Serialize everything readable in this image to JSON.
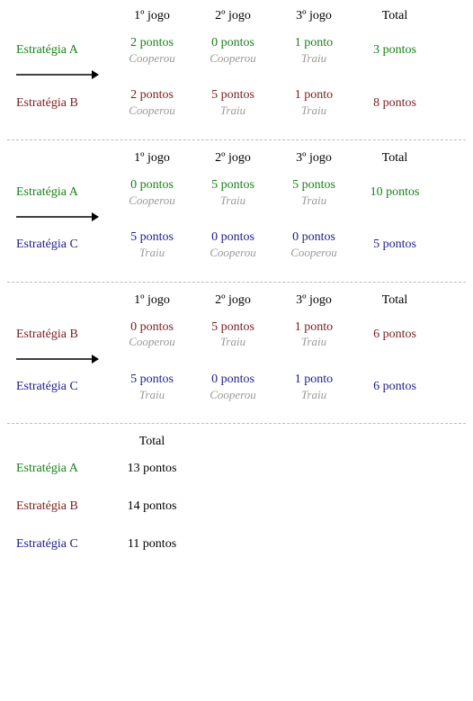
{
  "colors": {
    "A": "#178217",
    "B": "#7a1c1c",
    "C": "#1c1c8a",
    "header": "#000000",
    "action": "#9a9a97",
    "summary_value": "#000000"
  },
  "headers": {
    "g1": "1º jogo",
    "g2": "2º jogo",
    "g3": "3º jogo",
    "total": "Total"
  },
  "panels": [
    {
      "top": {
        "id": "A",
        "label": "Estratégia A",
        "g1": {
          "score": "2 pontos",
          "action": "Cooperou"
        },
        "g2": {
          "score": "0 pontos",
          "action": "Cooperou"
        },
        "g3": {
          "score": "1 ponto",
          "action": "Traiu"
        },
        "total": "3 pontos"
      },
      "bot": {
        "id": "B",
        "label": "Estratégia B",
        "g1": {
          "score": "2 pontos",
          "action": "Cooperou"
        },
        "g2": {
          "score": "5 pontos",
          "action": "Traiu"
        },
        "g3": {
          "score": "1 ponto",
          "action": "Traiu"
        },
        "total": "8 pontos"
      }
    },
    {
      "top": {
        "id": "A",
        "label": "Estratégia A",
        "g1": {
          "score": "0 pontos",
          "action": "Cooperou"
        },
        "g2": {
          "score": "5 pontos",
          "action": "Traiu"
        },
        "g3": {
          "score": "5 pontos",
          "action": "Traiu"
        },
        "total": "10 pontos"
      },
      "bot": {
        "id": "C",
        "label": "Estratégia C",
        "g1": {
          "score": "5 pontos",
          "action": "Traiu"
        },
        "g2": {
          "score": "0 pontos",
          "action": "Cooperou"
        },
        "g3": {
          "score": "0 pontos",
          "action": "Cooperou"
        },
        "total": "5 pontos"
      }
    },
    {
      "top": {
        "id": "B",
        "label": "Estratégia B",
        "g1": {
          "score": "0 pontos",
          "action": "Cooperou"
        },
        "g2": {
          "score": "5 pontos",
          "action": "Traiu"
        },
        "g3": {
          "score": "1 ponto",
          "action": "Traiu"
        },
        "total": "6 pontos"
      },
      "bot": {
        "id": "C",
        "label": "Estratégia C",
        "g1": {
          "score": "5 pontos",
          "action": "Traiu"
        },
        "g2": {
          "score": "0 pontos",
          "action": "Cooperou"
        },
        "g3": {
          "score": "1 ponto",
          "action": "Traiu"
        },
        "total": "6 pontos"
      }
    }
  ],
  "summary": {
    "header": "Total",
    "rows": [
      {
        "id": "A",
        "label": "Estratégia A",
        "total": "13 pontos"
      },
      {
        "id": "B",
        "label": "Estratégia B",
        "total": "14 pontos"
      },
      {
        "id": "C",
        "label": "Estratégia C",
        "total": "11 pontos"
      }
    ]
  }
}
